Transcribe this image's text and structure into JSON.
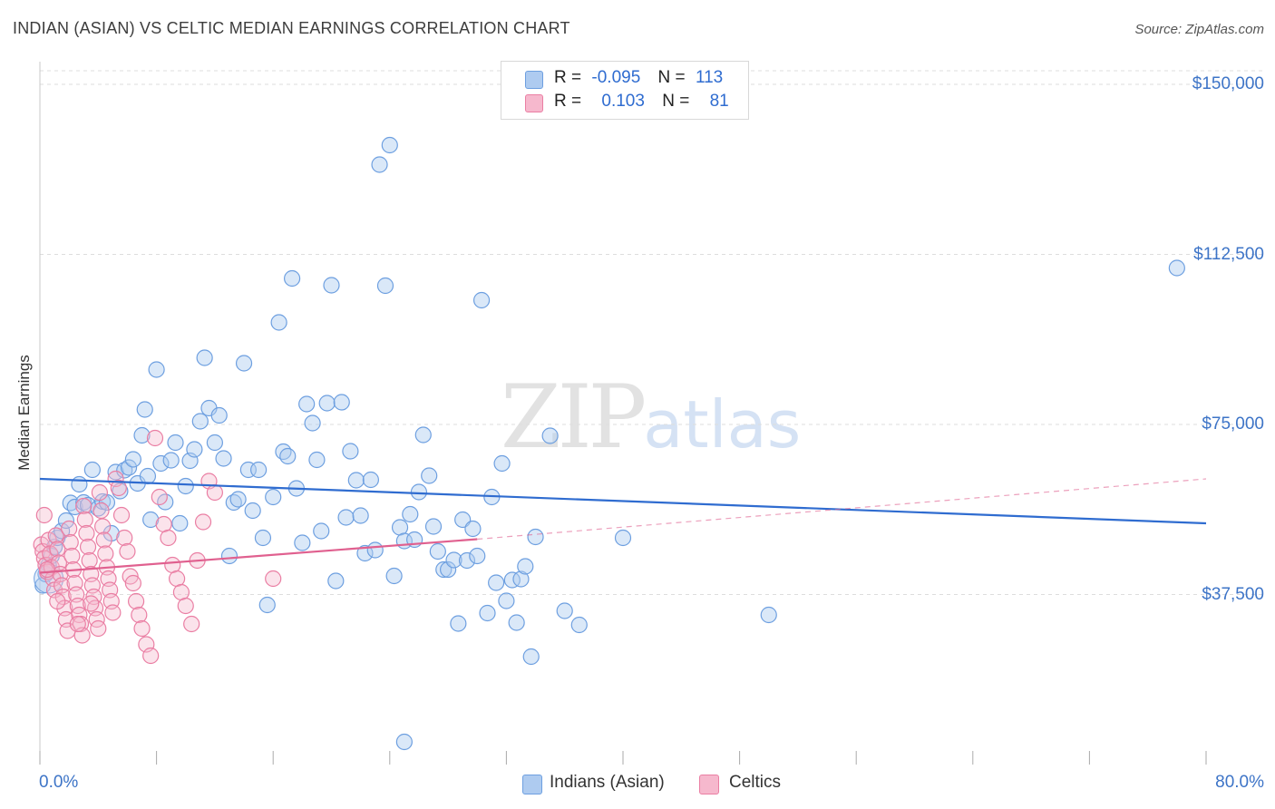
{
  "header": {
    "title": "INDIAN (ASIAN) VS CELTIC MEDIAN EARNINGS CORRELATION CHART",
    "source": "Source: ZipAtlas.com"
  },
  "watermark": {
    "zip": "ZIP",
    "atlas": "atlas"
  },
  "legend_top": {
    "rows": [
      {
        "r_label": "R =",
        "r_value": "-0.095",
        "n_label": "N =",
        "n_value": "113"
      },
      {
        "r_label": "R =",
        "r_value": "0.103",
        "n_label": "N =",
        "n_value": "81"
      }
    ]
  },
  "legend_bottom": {
    "series1": "Indians (Asian)",
    "series2": "Celtics"
  },
  "colors": {
    "blue_fill": "#aecbf0",
    "blue_stroke": "#6d9fe0",
    "blue_line": "#2f6cd0",
    "pink_fill": "#f6b8cd",
    "pink_stroke": "#ea7ea3",
    "pink_line": "#e0608f",
    "tick_text": "#3d74c7",
    "grid": "#dddddd"
  },
  "chart_data": {
    "type": "scatter",
    "title": "INDIAN (ASIAN) VS CELTIC MEDIAN EARNINGS CORRELATION CHART",
    "xlabel": "",
    "ylabel": "Median Earnings",
    "xlim": [
      0,
      80
    ],
    "ylim": [
      0,
      153000
    ],
    "x_tick_labels": [
      "0.0%",
      "80.0%"
    ],
    "y_ticks": [
      37500,
      75000,
      112500,
      150000
    ],
    "y_tick_labels": [
      "$37,500",
      "$75,000",
      "$112,500",
      "$150,000"
    ],
    "series": [
      {
        "name": "Indians (Asian)",
        "R": -0.095,
        "N": 113,
        "trend": {
          "x": [
            0,
            80
          ],
          "y": [
            63000,
            53200
          ]
        },
        "points": [
          [
            0.2,
            39500
          ],
          [
            0.4,
            42000
          ],
          [
            0.6,
            44000
          ],
          [
            0.8,
            46000
          ],
          [
            1,
            48000
          ],
          [
            1.2,
            50000
          ],
          [
            1.5,
            51500
          ],
          [
            1.8,
            53800
          ],
          [
            2.1,
            57700
          ],
          [
            2.4,
            56800
          ],
          [
            2.7,
            61800
          ],
          [
            3,
            57800
          ],
          [
            3.3,
            57200
          ],
          [
            3.6,
            65000
          ],
          [
            4,
            56500
          ],
          [
            4.3,
            58000
          ],
          [
            4.6,
            57800
          ],
          [
            4.9,
            51000
          ],
          [
            5.2,
            64500
          ],
          [
            5.5,
            60300
          ],
          [
            5.8,
            64900
          ],
          [
            6.1,
            65500
          ],
          [
            6.4,
            67300
          ],
          [
            6.7,
            62000
          ],
          [
            7,
            72600
          ],
          [
            7.2,
            78300
          ],
          [
            7.4,
            63600
          ],
          [
            7.6,
            54000
          ],
          [
            8,
            87100
          ],
          [
            8.3,
            66400
          ],
          [
            8.6,
            57900
          ],
          [
            9,
            67100
          ],
          [
            9.3,
            71000
          ],
          [
            9.6,
            53200
          ],
          [
            10,
            61400
          ],
          [
            10.3,
            67000
          ],
          [
            10.6,
            69500
          ],
          [
            11,
            75700
          ],
          [
            11.3,
            89700
          ],
          [
            11.6,
            78600
          ],
          [
            12,
            71000
          ],
          [
            12.3,
            77000
          ],
          [
            12.6,
            67500
          ],
          [
            13,
            46000
          ],
          [
            13.3,
            57800
          ],
          [
            13.6,
            58500
          ],
          [
            14,
            88500
          ],
          [
            14.3,
            65000
          ],
          [
            14.6,
            56000
          ],
          [
            15,
            65000
          ],
          [
            15.3,
            50000
          ],
          [
            15.6,
            35200
          ],
          [
            16,
            59000
          ],
          [
            16.4,
            97500
          ],
          [
            16.7,
            69000
          ],
          [
            17,
            68000
          ],
          [
            17.3,
            107200
          ],
          [
            17.6,
            60900
          ],
          [
            18,
            48900
          ],
          [
            18.3,
            79500
          ],
          [
            18.7,
            75300
          ],
          [
            19,
            67200
          ],
          [
            19.3,
            51500
          ],
          [
            19.7,
            79700
          ],
          [
            20,
            105700
          ],
          [
            20.3,
            40500
          ],
          [
            20.7,
            79900
          ],
          [
            21,
            54500
          ],
          [
            21.3,
            69100
          ],
          [
            21.7,
            62700
          ],
          [
            22,
            54900
          ],
          [
            22.3,
            46600
          ],
          [
            22.7,
            62800
          ],
          [
            23,
            47300
          ],
          [
            23.3,
            132300
          ],
          [
            23.7,
            105600
          ],
          [
            24,
            136600
          ],
          [
            24.3,
            41600
          ],
          [
            24.7,
            52300
          ],
          [
            25,
            49300
          ],
          [
            25.4,
            55200
          ],
          [
            25.7,
            49600
          ],
          [
            26,
            60100
          ],
          [
            26.3,
            72700
          ],
          [
            26.7,
            63700
          ],
          [
            27,
            52500
          ],
          [
            27.3,
            47000
          ],
          [
            27.7,
            43000
          ],
          [
            28,
            43000
          ],
          [
            28.4,
            45100
          ],
          [
            28.7,
            31100
          ],
          [
            29,
            54000
          ],
          [
            29.3,
            45000
          ],
          [
            29.7,
            52000
          ],
          [
            30,
            46000
          ],
          [
            30.3,
            102400
          ],
          [
            30.7,
            33400
          ],
          [
            31,
            59000
          ],
          [
            31.3,
            40100
          ],
          [
            31.7,
            66400
          ],
          [
            32,
            36100
          ],
          [
            32.4,
            40700
          ],
          [
            32.7,
            31300
          ],
          [
            33,
            40900
          ],
          [
            33.3,
            43700
          ],
          [
            33.7,
            23800
          ],
          [
            34,
            50200
          ],
          [
            35,
            72500
          ],
          [
            36,
            33900
          ],
          [
            37,
            30800
          ],
          [
            40,
            50000
          ],
          [
            50,
            33000
          ],
          [
            78,
            109500
          ],
          [
            25,
            5000
          ]
        ]
      },
      {
        "name": "Celtics",
        "R": 0.103,
        "N": 81,
        "trend": {
          "x": [
            0,
            30
          ],
          "y": [
            42300,
            49700
          ]
        },
        "trend_dashed": {
          "x": [
            30,
            80
          ],
          "y": [
            49700,
            63000
          ]
        },
        "points": [
          [
            0.1,
            48500
          ],
          [
            0.2,
            47000
          ],
          [
            0.3,
            45500
          ],
          [
            0.4,
            44000
          ],
          [
            0.5,
            42500
          ],
          [
            0.6,
            49500
          ],
          [
            0.7,
            46500
          ],
          [
            0.8,
            43500
          ],
          [
            0.9,
            41000
          ],
          [
            1,
            38500
          ],
          [
            1.1,
            50500
          ],
          [
            1.2,
            47500
          ],
          [
            1.3,
            44500
          ],
          [
            1.4,
            42000
          ],
          [
            1.5,
            39500
          ],
          [
            1.6,
            37000
          ],
          [
            1.7,
            34500
          ],
          [
            1.8,
            32000
          ],
          [
            1.9,
            29500
          ],
          [
            2,
            52000
          ],
          [
            2.1,
            49000
          ],
          [
            2.2,
            46000
          ],
          [
            2.3,
            43000
          ],
          [
            2.4,
            40000
          ],
          [
            2.5,
            37500
          ],
          [
            2.6,
            35000
          ],
          [
            2.7,
            33000
          ],
          [
            2.8,
            31000
          ],
          [
            2.9,
            28500
          ],
          [
            3,
            57000
          ],
          [
            3.1,
            54000
          ],
          [
            3.2,
            51000
          ],
          [
            3.3,
            48000
          ],
          [
            3.4,
            45000
          ],
          [
            3.5,
            42000
          ],
          [
            3.6,
            39500
          ],
          [
            3.7,
            37000
          ],
          [
            3.8,
            34500
          ],
          [
            3.9,
            32000
          ],
          [
            4,
            30000
          ],
          [
            4.1,
            60000
          ],
          [
            4.2,
            56000
          ],
          [
            4.3,
            52500
          ],
          [
            4.4,
            49500
          ],
          [
            4.5,
            46500
          ],
          [
            4.6,
            43500
          ],
          [
            4.7,
            41000
          ],
          [
            4.8,
            38500
          ],
          [
            4.9,
            36000
          ],
          [
            5,
            33500
          ],
          [
            5.2,
            63000
          ],
          [
            5.4,
            61000
          ],
          [
            5.6,
            55000
          ],
          [
            5.8,
            50000
          ],
          [
            6,
            47000
          ],
          [
            6.2,
            41500
          ],
          [
            6.4,
            40000
          ],
          [
            6.6,
            36000
          ],
          [
            6.8,
            33000
          ],
          [
            7,
            30000
          ],
          [
            7.3,
            26500
          ],
          [
            7.6,
            24000
          ],
          [
            7.9,
            72000
          ],
          [
            8.2,
            59000
          ],
          [
            8.5,
            53000
          ],
          [
            8.8,
            50000
          ],
          [
            9.1,
            44000
          ],
          [
            9.4,
            41000
          ],
          [
            9.7,
            38000
          ],
          [
            10,
            35000
          ],
          [
            10.4,
            31000
          ],
          [
            10.8,
            45000
          ],
          [
            11.2,
            53500
          ],
          [
            11.6,
            62500
          ],
          [
            12,
            60000
          ],
          [
            16,
            41000
          ],
          [
            0.3,
            55000
          ],
          [
            0.5,
            43000
          ],
          [
            1.2,
            36000
          ],
          [
            2.6,
            31000
          ],
          [
            3.5,
            35500
          ]
        ]
      }
    ]
  }
}
